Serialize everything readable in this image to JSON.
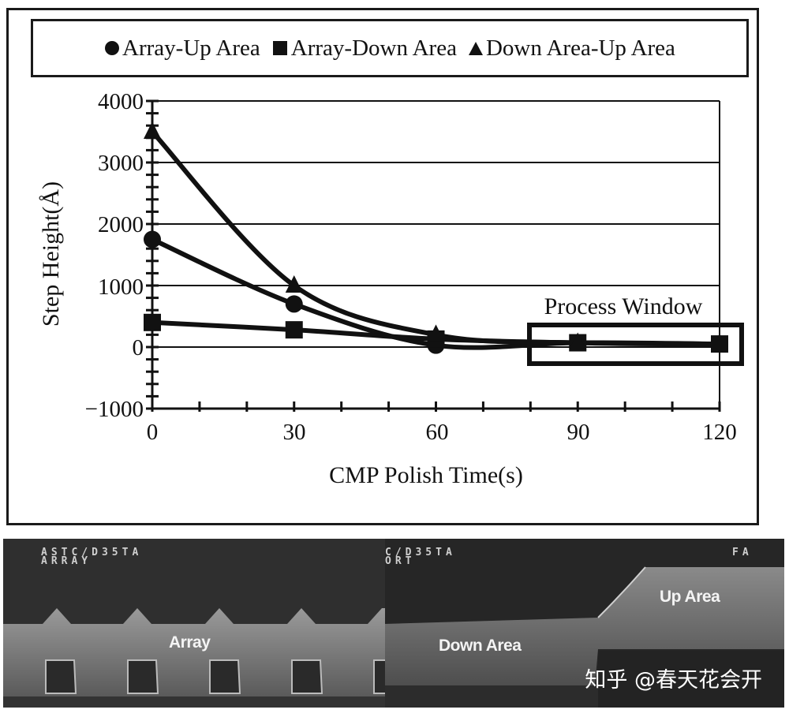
{
  "legend": {
    "items": [
      {
        "marker": "circle",
        "label": "Array-Up Area"
      },
      {
        "marker": "square",
        "label": "Array-Down Area"
      },
      {
        "marker": "triangle",
        "label": "Down Area-Up Area"
      }
    ]
  },
  "axes": {
    "ylabel": "Step Height(Å)",
    "xlabel": "CMP Polish Time(s)",
    "yticks": [
      "4000",
      "3000",
      "2000",
      "1000",
      "0",
      "−1000"
    ],
    "xticks": [
      "0",
      "30",
      "60",
      "90",
      "120"
    ]
  },
  "annotation": {
    "process_window": "Process Window"
  },
  "chart_data": {
    "type": "line",
    "title": "",
    "xlabel": "CMP Polish Time(s)",
    "ylabel": "Step Height(Å)",
    "x": [
      0,
      30,
      60,
      90,
      120
    ],
    "xlim": [
      0,
      120
    ],
    "ylim": [
      -1000,
      4000
    ],
    "grid": {
      "horizontal": true,
      "vertical": false
    },
    "legend_position": "top",
    "series": [
      {
        "name": "Array-Up Area",
        "marker": "circle",
        "values": [
          1750,
          700,
          30,
          70,
          50
        ]
      },
      {
        "name": "Array-Down Area",
        "marker": "square",
        "values": [
          400,
          280,
          130,
          70,
          50
        ]
      },
      {
        "name": "Down Area-Up Area",
        "marker": "triangle",
        "values": [
          3500,
          1000,
          200,
          70,
          50
        ]
      }
    ],
    "annotations": [
      {
        "text": "Process Window",
        "x_range": [
          80,
          125
        ],
        "y_range": [
          -300,
          400
        ]
      }
    ]
  },
  "images": {
    "left": {
      "code_line1": "ASTC/D35TA",
      "code_line2": "ARRAY",
      "label": "Array"
    },
    "right": {
      "code_line1": "C/D35TA",
      "code_line2": "ORT",
      "code_right": "FA",
      "label_up": "Up Area",
      "label_down": "Down Area"
    },
    "watermark": "知乎 @春天花会开"
  }
}
